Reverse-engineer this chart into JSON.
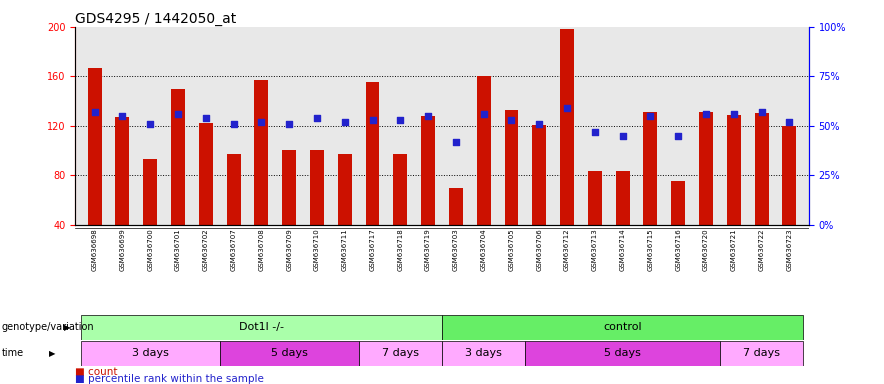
{
  "title": "GDS4295 / 1442050_at",
  "samples": [
    "GSM636698",
    "GSM636699",
    "GSM636700",
    "GSM636701",
    "GSM636702",
    "GSM636707",
    "GSM636708",
    "GSM636709",
    "GSM636710",
    "GSM636711",
    "GSM636717",
    "GSM636718",
    "GSM636719",
    "GSM636703",
    "GSM636704",
    "GSM636705",
    "GSM636706",
    "GSM636712",
    "GSM636713",
    "GSM636714",
    "GSM636715",
    "GSM636716",
    "GSM636720",
    "GSM636721",
    "GSM636722",
    "GSM636723"
  ],
  "counts": [
    167,
    127,
    93,
    150,
    122,
    97,
    157,
    100,
    100,
    97,
    155,
    97,
    128,
    70,
    160,
    133,
    121,
    198,
    83,
    83,
    131,
    75,
    131,
    129,
    130,
    120
  ],
  "percentile_ranks_pct": [
    57,
    55,
    51,
    56,
    54,
    51,
    52,
    51,
    54,
    52,
    53,
    53,
    55,
    42,
    56,
    53,
    51,
    59,
    47,
    45,
    55,
    45,
    56,
    56,
    57,
    52
  ],
  "ylim_left": [
    40,
    200
  ],
  "ylim_right": [
    0,
    100
  ],
  "yticks_left": [
    40,
    80,
    120,
    160,
    200
  ],
  "yticks_right": [
    0,
    25,
    50,
    75,
    100
  ],
  "ytick_labels_right": [
    "0%",
    "25%",
    "50%",
    "75%",
    "100%"
  ],
  "bar_color": "#cc1100",
  "dot_color": "#2222cc",
  "bar_width": 0.5,
  "genotype_groups": [
    {
      "label": "Dot1l -/-",
      "start": 0,
      "end": 12,
      "color": "#aaffaa"
    },
    {
      "label": "control",
      "start": 13,
      "end": 25,
      "color": "#66ee66"
    }
  ],
  "time_groups": [
    {
      "label": "3 days",
      "start": 0,
      "end": 4,
      "color": "#ffaaff"
    },
    {
      "label": "5 days",
      "start": 5,
      "end": 9,
      "color": "#dd44dd"
    },
    {
      "label": "7 days",
      "start": 10,
      "end": 12,
      "color": "#ffaaff"
    },
    {
      "label": "3 days",
      "start": 13,
      "end": 15,
      "color": "#ffaaff"
    },
    {
      "label": "5 days",
      "start": 16,
      "end": 22,
      "color": "#dd44dd"
    },
    {
      "label": "7 days",
      "start": 23,
      "end": 25,
      "color": "#ffaaff"
    }
  ],
  "legend_count_color": "#cc1100",
  "legend_pct_color": "#2222cc",
  "background_color": "#ffffff",
  "ax_background": "#e8e8e8",
  "title_fontsize": 10,
  "tick_fontsize": 7,
  "sample_fontsize": 5,
  "row_fontsize": 8,
  "genotype_label": "genotype/variation",
  "time_label": "time"
}
